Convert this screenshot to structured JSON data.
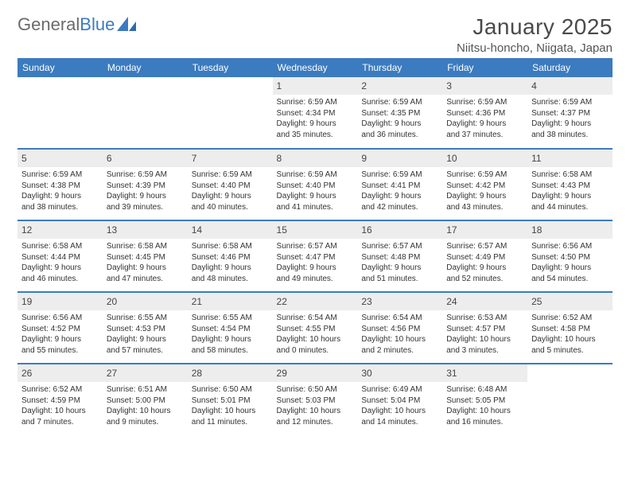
{
  "logo": {
    "part1": "General",
    "part2": "Blue"
  },
  "title": "January 2025",
  "subtitle": "Niitsu-honcho, Niigata, Japan",
  "colors": {
    "header_bg": "#3b7bbf",
    "header_text": "#ffffff",
    "daynum_bg": "#ededed",
    "row_border": "#3b7bbf",
    "logo_gray": "#6b6b6b",
    "logo_blue": "#3b7bbf"
  },
  "days_of_week": [
    "Sunday",
    "Monday",
    "Tuesday",
    "Wednesday",
    "Thursday",
    "Friday",
    "Saturday"
  ],
  "weeks": [
    [
      {
        "blank": true
      },
      {
        "blank": true
      },
      {
        "blank": true
      },
      {
        "n": "1",
        "sunrise": "6:59 AM",
        "sunset": "4:34 PM",
        "dl1": "Daylight: 9 hours",
        "dl2": "and 35 minutes."
      },
      {
        "n": "2",
        "sunrise": "6:59 AM",
        "sunset": "4:35 PM",
        "dl1": "Daylight: 9 hours",
        "dl2": "and 36 minutes."
      },
      {
        "n": "3",
        "sunrise": "6:59 AM",
        "sunset": "4:36 PM",
        "dl1": "Daylight: 9 hours",
        "dl2": "and 37 minutes."
      },
      {
        "n": "4",
        "sunrise": "6:59 AM",
        "sunset": "4:37 PM",
        "dl1": "Daylight: 9 hours",
        "dl2": "and 38 minutes."
      }
    ],
    [
      {
        "n": "5",
        "sunrise": "6:59 AM",
        "sunset": "4:38 PM",
        "dl1": "Daylight: 9 hours",
        "dl2": "and 38 minutes."
      },
      {
        "n": "6",
        "sunrise": "6:59 AM",
        "sunset": "4:39 PM",
        "dl1": "Daylight: 9 hours",
        "dl2": "and 39 minutes."
      },
      {
        "n": "7",
        "sunrise": "6:59 AM",
        "sunset": "4:40 PM",
        "dl1": "Daylight: 9 hours",
        "dl2": "and 40 minutes."
      },
      {
        "n": "8",
        "sunrise": "6:59 AM",
        "sunset": "4:40 PM",
        "dl1": "Daylight: 9 hours",
        "dl2": "and 41 minutes."
      },
      {
        "n": "9",
        "sunrise": "6:59 AM",
        "sunset": "4:41 PM",
        "dl1": "Daylight: 9 hours",
        "dl2": "and 42 minutes."
      },
      {
        "n": "10",
        "sunrise": "6:59 AM",
        "sunset": "4:42 PM",
        "dl1": "Daylight: 9 hours",
        "dl2": "and 43 minutes."
      },
      {
        "n": "11",
        "sunrise": "6:58 AM",
        "sunset": "4:43 PM",
        "dl1": "Daylight: 9 hours",
        "dl2": "and 44 minutes."
      }
    ],
    [
      {
        "n": "12",
        "sunrise": "6:58 AM",
        "sunset": "4:44 PM",
        "dl1": "Daylight: 9 hours",
        "dl2": "and 46 minutes."
      },
      {
        "n": "13",
        "sunrise": "6:58 AM",
        "sunset": "4:45 PM",
        "dl1": "Daylight: 9 hours",
        "dl2": "and 47 minutes."
      },
      {
        "n": "14",
        "sunrise": "6:58 AM",
        "sunset": "4:46 PM",
        "dl1": "Daylight: 9 hours",
        "dl2": "and 48 minutes."
      },
      {
        "n": "15",
        "sunrise": "6:57 AM",
        "sunset": "4:47 PM",
        "dl1": "Daylight: 9 hours",
        "dl2": "and 49 minutes."
      },
      {
        "n": "16",
        "sunrise": "6:57 AM",
        "sunset": "4:48 PM",
        "dl1": "Daylight: 9 hours",
        "dl2": "and 51 minutes."
      },
      {
        "n": "17",
        "sunrise": "6:57 AM",
        "sunset": "4:49 PM",
        "dl1": "Daylight: 9 hours",
        "dl2": "and 52 minutes."
      },
      {
        "n": "18",
        "sunrise": "6:56 AM",
        "sunset": "4:50 PM",
        "dl1": "Daylight: 9 hours",
        "dl2": "and 54 minutes."
      }
    ],
    [
      {
        "n": "19",
        "sunrise": "6:56 AM",
        "sunset": "4:52 PM",
        "dl1": "Daylight: 9 hours",
        "dl2": "and 55 minutes."
      },
      {
        "n": "20",
        "sunrise": "6:55 AM",
        "sunset": "4:53 PM",
        "dl1": "Daylight: 9 hours",
        "dl2": "and 57 minutes."
      },
      {
        "n": "21",
        "sunrise": "6:55 AM",
        "sunset": "4:54 PM",
        "dl1": "Daylight: 9 hours",
        "dl2": "and 58 minutes."
      },
      {
        "n": "22",
        "sunrise": "6:54 AM",
        "sunset": "4:55 PM",
        "dl1": "Daylight: 10 hours",
        "dl2": "and 0 minutes."
      },
      {
        "n": "23",
        "sunrise": "6:54 AM",
        "sunset": "4:56 PM",
        "dl1": "Daylight: 10 hours",
        "dl2": "and 2 minutes."
      },
      {
        "n": "24",
        "sunrise": "6:53 AM",
        "sunset": "4:57 PM",
        "dl1": "Daylight: 10 hours",
        "dl2": "and 3 minutes."
      },
      {
        "n": "25",
        "sunrise": "6:52 AM",
        "sunset": "4:58 PM",
        "dl1": "Daylight: 10 hours",
        "dl2": "and 5 minutes."
      }
    ],
    [
      {
        "n": "26",
        "sunrise": "6:52 AM",
        "sunset": "4:59 PM",
        "dl1": "Daylight: 10 hours",
        "dl2": "and 7 minutes."
      },
      {
        "n": "27",
        "sunrise": "6:51 AM",
        "sunset": "5:00 PM",
        "dl1": "Daylight: 10 hours",
        "dl2": "and 9 minutes."
      },
      {
        "n": "28",
        "sunrise": "6:50 AM",
        "sunset": "5:01 PM",
        "dl1": "Daylight: 10 hours",
        "dl2": "and 11 minutes."
      },
      {
        "n": "29",
        "sunrise": "6:50 AM",
        "sunset": "5:03 PM",
        "dl1": "Daylight: 10 hours",
        "dl2": "and 12 minutes."
      },
      {
        "n": "30",
        "sunrise": "6:49 AM",
        "sunset": "5:04 PM",
        "dl1": "Daylight: 10 hours",
        "dl2": "and 14 minutes."
      },
      {
        "n": "31",
        "sunrise": "6:48 AM",
        "sunset": "5:05 PM",
        "dl1": "Daylight: 10 hours",
        "dl2": "and 16 minutes."
      },
      {
        "blank": true
      }
    ]
  ],
  "labels": {
    "sunrise": "Sunrise: ",
    "sunset": "Sunset: "
  }
}
